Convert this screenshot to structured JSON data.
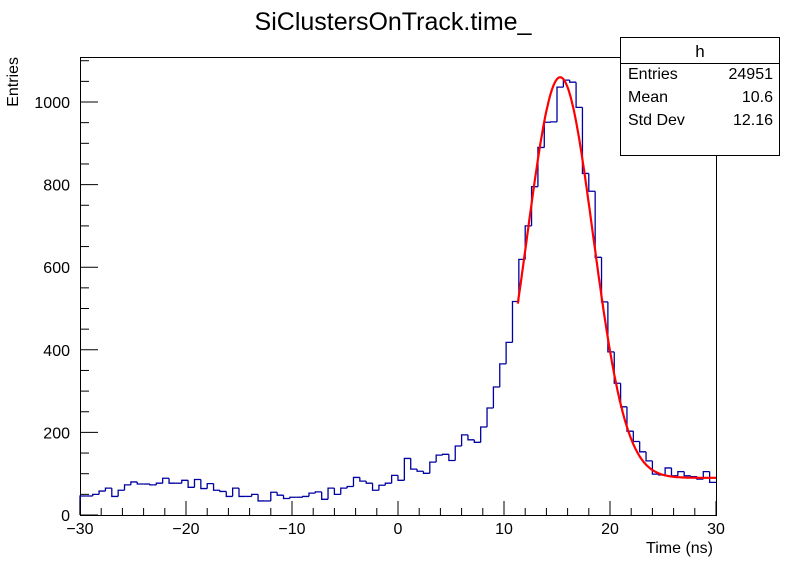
{
  "chart_data": {
    "type": "histogram",
    "title": "SiClustersOnTrack.time_",
    "xlabel": "Time (ns)",
    "ylabel": "Entries",
    "xlim": [
      -30,
      30
    ],
    "ylim": [
      0,
      1109
    ],
    "xticks": [
      -30,
      -20,
      -10,
      0,
      10,
      20,
      30
    ],
    "yticks": [
      0,
      200,
      400,
      600,
      800,
      1000
    ],
    "grid": false,
    "bin_width": 0.6,
    "line_color": "#0000a0",
    "fit_color": "#ff0000",
    "values": [
      46,
      46,
      50,
      58,
      65,
      45,
      60,
      73,
      80,
      75,
      75,
      73,
      77,
      89,
      77,
      77,
      84,
      67,
      86,
      64,
      76,
      60,
      57,
      45,
      65,
      45,
      45,
      50,
      34,
      34,
      55,
      48,
      40,
      43,
      43,
      45,
      53,
      56,
      38,
      65,
      50,
      65,
      69,
      91,
      82,
      77,
      60,
      72,
      77,
      96,
      84,
      137,
      111,
      106,
      101,
      128,
      145,
      147,
      132,
      167,
      194,
      182,
      176,
      213,
      259,
      310,
      366,
      418,
      517,
      619,
      700,
      795,
      890,
      951,
      952,
      1036,
      1053,
      1048,
      987,
      827,
      784,
      624,
      516,
      395,
      319,
      262,
      203,
      178,
      153,
      131,
      99,
      97,
      114,
      95,
      105,
      95,
      93,
      87,
      105,
      79
    ],
    "fit": {
      "shape": "gaussian plus constant",
      "x_range": [
        11.3,
        30
      ],
      "peak_x": 15.3,
      "peak_y": 1060,
      "sigma": 3.1,
      "baseline": 90
    },
    "stats_box": {
      "title": "h",
      "rows": [
        {
          "label": "Entries",
          "value": "24951"
        },
        {
          "label": "Mean",
          "value": "10.6"
        },
        {
          "label": "Std Dev",
          "value": "12.16"
        }
      ],
      "placement": "top-right"
    }
  }
}
